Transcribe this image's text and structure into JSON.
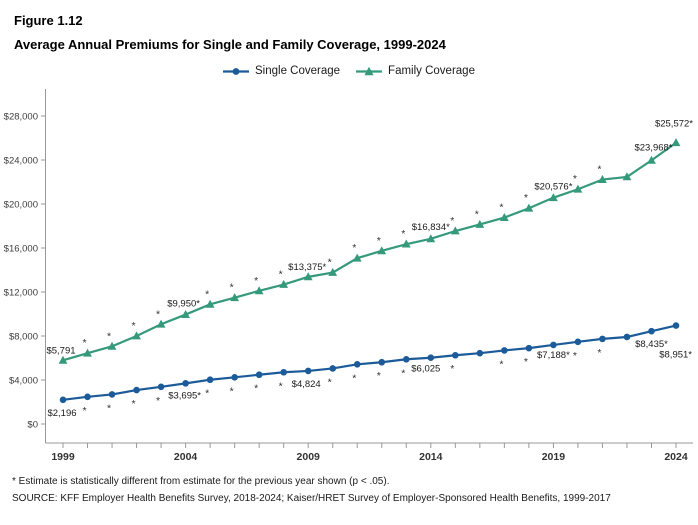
{
  "header": {
    "figure_number": "Figure 1.12",
    "title": "Average Annual Premiums for Single and Family Coverage, 1999-2024"
  },
  "legend": {
    "items": [
      {
        "label": "Single Coverage"
      },
      {
        "label": "Family Coverage"
      }
    ]
  },
  "footnotes": {
    "note": "* Estimate is statistically different from estimate for the previous year shown (p < .05).",
    "source": "SOURCE: KFF Employer Health Benefits Survey, 2018-2024; Kaiser/HRET Survey of Employer-Sponsored Health Benefits, 1999-2017"
  },
  "chart_data": {
    "type": "line",
    "title": "Average Annual Premiums for Single and Family Coverage, 1999-2024",
    "xlabel": "",
    "ylabel": "",
    "ylim": [
      0,
      28000
    ],
    "ytick_step": 4000,
    "ytick_labels": [
      "$0",
      "$4,000",
      "$8,000",
      "$12,000",
      "$16,000",
      "$20,000",
      "$24,000",
      "$28,000"
    ],
    "x": [
      1999,
      2000,
      2001,
      2002,
      2003,
      2004,
      2005,
      2006,
      2007,
      2008,
      2009,
      2010,
      2011,
      2012,
      2013,
      2014,
      2015,
      2016,
      2017,
      2018,
      2019,
      2020,
      2021,
      2022,
      2023,
      2024
    ],
    "xtick_labeled_years": [
      1999,
      2004,
      2009,
      2014,
      2019,
      2024
    ],
    "grid": false,
    "legend_position": "top-center",
    "sig_note_symbol": "*",
    "series": [
      {
        "name": "Single Coverage",
        "color": "#1c5b99",
        "marker": "circle",
        "sig_position": "below",
        "values": [
          2196,
          2471,
          2689,
          3083,
          3383,
          3695,
          4024,
          4242,
          4479,
          4704,
          4824,
          5049,
          5429,
          5615,
          5884,
          6025,
          6251,
          6435,
          6690,
          6896,
          7188,
          7470,
          7739,
          7911,
          8435,
          8951
        ],
        "sig_years": [
          2000,
          2001,
          2002,
          2003,
          2005,
          2006,
          2007,
          2008,
          2010,
          2011,
          2012,
          2013,
          2015,
          2017,
          2018,
          2020,
          2021
        ],
        "point_labels": [
          {
            "year": 1999,
            "text": "$2,196",
            "dx": -1,
            "dy": 16,
            "anchor": "middle"
          },
          {
            "year": 2004,
            "text": "$3,695*",
            "dx": -1,
            "dy": 15,
            "anchor": "middle"
          },
          {
            "year": 2009,
            "text": "$4,824",
            "dx": -2,
            "dy": 16,
            "anchor": "middle"
          },
          {
            "year": 2014,
            "text": "$6,025",
            "dx": -5,
            "dy": 14,
            "anchor": "middle"
          },
          {
            "year": 2019,
            "text": "$7,188*",
            "dx": 0,
            "dy": 13,
            "anchor": "middle"
          },
          {
            "year": 2023,
            "text": "$8,435*",
            "dx": 0,
            "dy": 16,
            "anchor": "middle"
          },
          {
            "year": 2024,
            "text": "$8,951*",
            "dx": 16,
            "dy": 32,
            "anchor": "end"
          }
        ]
      },
      {
        "name": "Family Coverage",
        "color": "#35997c",
        "marker": "triangle",
        "sig_position": "above",
        "values": [
          5791,
          6438,
          7061,
          8003,
          9068,
          9950,
          10880,
          11480,
          12106,
          12680,
          13375,
          13770,
          15073,
          15745,
          16351,
          16834,
          17545,
          18142,
          18764,
          19616,
          20576,
          21342,
          22221,
          22463,
          23968,
          25572
        ],
        "sig_years": [
          2000,
          2001,
          2002,
          2003,
          2005,
          2006,
          2007,
          2008,
          2010,
          2011,
          2012,
          2013,
          2015,
          2016,
          2017,
          2018,
          2020,
          2021
        ],
        "point_labels": [
          {
            "year": 1999,
            "text": "$5,791",
            "dx": -2,
            "dy": -7,
            "anchor": "middle"
          },
          {
            "year": 2004,
            "text": "$9,950*",
            "dx": -2,
            "dy": -8,
            "anchor": "middle"
          },
          {
            "year": 2009,
            "text": "$13,375*",
            "dx": -1,
            "dy": -7,
            "anchor": "middle"
          },
          {
            "year": 2014,
            "text": "$16,834*",
            "dx": 0,
            "dy": -9,
            "anchor": "middle"
          },
          {
            "year": 2019,
            "text": "$20,576*",
            "dx": 0,
            "dy": -8,
            "anchor": "middle"
          },
          {
            "year": 2023,
            "text": "$23,968*",
            "dx": 2,
            "dy": -10,
            "anchor": "middle"
          },
          {
            "year": 2024,
            "text": "$25,572*",
            "dx": 17,
            "dy": -16,
            "anchor": "end"
          }
        ]
      }
    ]
  }
}
